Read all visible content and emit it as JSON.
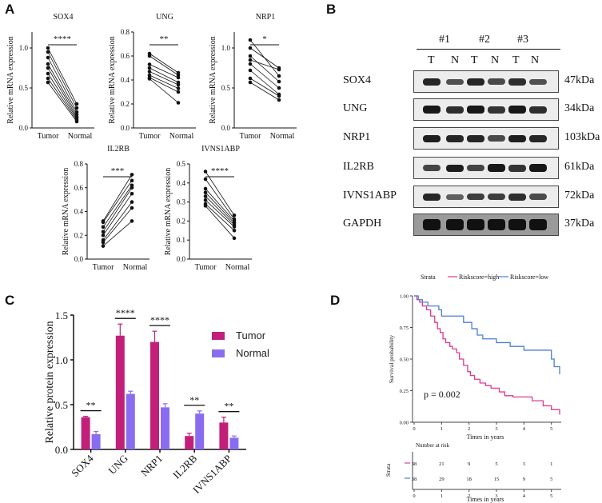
{
  "panels": {
    "a": "A",
    "b": "B",
    "c": "C",
    "d": "D"
  },
  "panel_a": {
    "x_tumor": "Tumor",
    "x_normal": "Normal",
    "ylabel": "Relative mRNA expression",
    "plots": [
      {
        "title": "SOX4",
        "sig": "****",
        "ylim": [
          0,
          1.2
        ],
        "ticks": [
          "0.0",
          "0.5",
          "1.0"
        ],
        "tick_values": [
          0,
          0.5,
          1.0
        ],
        "pairs": [
          [
            1.0,
            0.3
          ],
          [
            0.95,
            0.25
          ],
          [
            0.88,
            0.2
          ],
          [
            0.8,
            0.17
          ],
          [
            0.75,
            0.14
          ],
          [
            0.68,
            0.12
          ],
          [
            0.62,
            0.1
          ],
          [
            0.57,
            0.08
          ]
        ]
      },
      {
        "title": "UNG",
        "sig": "**",
        "ylim": [
          0,
          0.8
        ],
        "ticks": [
          "0.0",
          "0.2",
          "0.4",
          "0.6",
          "0.8"
        ],
        "tick_values": [
          0,
          0.2,
          0.4,
          0.6,
          0.8
        ],
        "pairs": [
          [
            0.62,
            0.46
          ],
          [
            0.6,
            0.44
          ],
          [
            0.53,
            0.42
          ],
          [
            0.5,
            0.38
          ],
          [
            0.47,
            0.36
          ],
          [
            0.44,
            0.33
          ],
          [
            0.42,
            0.3
          ],
          [
            0.41,
            0.21
          ]
        ]
      },
      {
        "title": "NRP1",
        "sig": "*",
        "ylim": [
          0,
          1.2
        ],
        "ticks": [
          "0.0",
          "0.5",
          "1.0"
        ],
        "tick_values": [
          0,
          0.5,
          1.0
        ],
        "pairs": [
          [
            1.1,
            0.65
          ],
          [
            1.0,
            0.75
          ],
          [
            0.9,
            0.58
          ],
          [
            0.85,
            0.73
          ],
          [
            0.8,
            0.5
          ],
          [
            0.72,
            0.42
          ],
          [
            0.62,
            0.4
          ],
          [
            0.57,
            0.35
          ]
        ]
      },
      {
        "title": "IL2RB",
        "sig": "***",
        "ylim": [
          0,
          0.8
        ],
        "ticks": [
          "0.0",
          "0.2",
          "0.4",
          "0.6",
          "0.8"
        ],
        "tick_values": [
          0,
          0.2,
          0.4,
          0.6,
          0.8
        ],
        "pairs": [
          [
            0.32,
            0.71
          ],
          [
            0.31,
            0.66
          ],
          [
            0.27,
            0.62
          ],
          [
            0.23,
            0.6
          ],
          [
            0.2,
            0.55
          ],
          [
            0.16,
            0.48
          ],
          [
            0.14,
            0.43
          ],
          [
            0.11,
            0.32
          ]
        ]
      },
      {
        "title": "IVNS1ABP",
        "sig": "****",
        "ylim": [
          0,
          0.5
        ],
        "ticks": [
          "0.0",
          "0.1",
          "0.2",
          "0.3",
          "0.4",
          "0.5"
        ],
        "tick_values": [
          0,
          0.1,
          0.2,
          0.3,
          0.4,
          0.5
        ],
        "pairs": [
          [
            0.46,
            0.23
          ],
          [
            0.42,
            0.21
          ],
          [
            0.37,
            0.2
          ],
          [
            0.35,
            0.19
          ],
          [
            0.33,
            0.18
          ],
          [
            0.31,
            0.17
          ],
          [
            0.29,
            0.15
          ],
          [
            0.28,
            0.11
          ]
        ]
      }
    ]
  },
  "panel_b": {
    "replicates": [
      "#1",
      "#2",
      "#3"
    ],
    "lanes": [
      "T",
      "N",
      "T",
      "N",
      "T",
      "N"
    ],
    "rows": [
      {
        "protein": "SOX4",
        "kda": "47kDa",
        "intensity": [
          0.85,
          0.55,
          0.85,
          0.6,
          0.8,
          0.55
        ]
      },
      {
        "protein": "UNG",
        "kda": "34kDa",
        "intensity": [
          0.95,
          0.8,
          0.95,
          0.75,
          0.95,
          0.8
        ]
      },
      {
        "protein": "NRP1",
        "kda": "103kDa",
        "intensity": [
          0.9,
          0.85,
          0.85,
          0.6,
          0.9,
          0.85
        ]
      },
      {
        "protein": "IL2RB",
        "kda": "61kDa",
        "intensity": [
          0.65,
          0.9,
          0.65,
          0.95,
          0.75,
          0.95
        ]
      },
      {
        "protein": "IVNS1ABP",
        "kda": "72kDa",
        "intensity": [
          0.85,
          0.45,
          0.7,
          0.7,
          0.8,
          0.6
        ]
      },
      {
        "protein": "GAPDH",
        "kda": "37kDa",
        "intensity": [
          1.0,
          1.0,
          1.0,
          1.0,
          1.0,
          1.0
        ]
      }
    ]
  },
  "chart_data": [
    {
      "type": "bar",
      "ylabel": "Relative protein expression",
      "ylim": [
        0,
        1.5
      ],
      "yticks": [
        "0.0",
        "0.5",
        "1.0",
        "1.5"
      ],
      "categories": [
        "SOX4",
        "UNG",
        "NRP1",
        "IL2RB",
        "IVNS1ABP"
      ],
      "series": [
        {
          "name": "Tumor",
          "color": "#c21f7a",
          "values": [
            0.36,
            1.27,
            1.2,
            0.15,
            0.3
          ],
          "errors": [
            0.01,
            0.13,
            0.12,
            0.03,
            0.06
          ]
        },
        {
          "name": "Normal",
          "color": "#8a6cf0",
          "values": [
            0.17,
            0.62,
            0.47,
            0.4,
            0.13
          ],
          "errors": [
            0.03,
            0.03,
            0.04,
            0.03,
            0.02
          ]
        }
      ],
      "significance": [
        "**",
        "****",
        "****",
        "**",
        "**"
      ],
      "legend": "top-right"
    },
    {
      "type": "line",
      "strata_label": "Strata",
      "legend_entries": [
        {
          "name": "Riskscore=high",
          "color": "#dd3a8f"
        },
        {
          "name": "Riskscore=low",
          "color": "#4a7fd4"
        }
      ],
      "ylabel": "Survival probability",
      "xlabel": "Times in years",
      "ylim": [
        0,
        1
      ],
      "xlim": [
        0,
        5.3
      ],
      "yticks": [
        "0.00",
        "0.25",
        "0.50",
        "0.75",
        "1.00"
      ],
      "xticks": [
        "0",
        "1",
        "2",
        "3",
        "4",
        "5"
      ],
      "pvalue": "p = 0.002",
      "series": [
        {
          "name": "Riskscore=high",
          "x": [
            0,
            0.1,
            0.2,
            0.3,
            0.45,
            0.6,
            0.75,
            0.85,
            0.95,
            1.05,
            1.15,
            1.3,
            1.4,
            1.55,
            1.65,
            1.8,
            1.95,
            2.05,
            2.2,
            2.4,
            2.6,
            2.8,
            3.1,
            3.3,
            3.6,
            4.3,
            4.7,
            5.0,
            5.3
          ],
          "y": [
            1.0,
            0.97,
            0.95,
            0.92,
            0.89,
            0.84,
            0.79,
            0.74,
            0.71,
            0.66,
            0.63,
            0.6,
            0.58,
            0.55,
            0.5,
            0.45,
            0.4,
            0.37,
            0.34,
            0.31,
            0.29,
            0.27,
            0.24,
            0.21,
            0.2,
            0.17,
            0.13,
            0.1,
            0.06
          ]
        },
        {
          "name": "Riskscore=low",
          "x": [
            0,
            0.15,
            0.3,
            0.5,
            0.9,
            1.0,
            1.6,
            1.8,
            2.1,
            2.3,
            2.5,
            3.0,
            3.5,
            4.0,
            4.8,
            5.0,
            5.1,
            5.3
          ],
          "y": [
            1.0,
            0.97,
            0.95,
            0.92,
            0.89,
            0.84,
            0.84,
            0.79,
            0.74,
            0.69,
            0.66,
            0.63,
            0.6,
            0.57,
            0.57,
            0.5,
            0.44,
            0.38
          ]
        }
      ],
      "risk_table": {
        "title": "Number at risk",
        "strata_axis": "Strata",
        "times": [
          "0",
          "1",
          "2",
          "3",
          "4",
          "5"
        ],
        "high": [
          "38",
          "21",
          "9",
          "5",
          "3",
          "1"
        ],
        "low": [
          "38",
          "29",
          "18",
          "15",
          "9",
          "5"
        ],
        "xlabel": "Times in years"
      }
    }
  ]
}
